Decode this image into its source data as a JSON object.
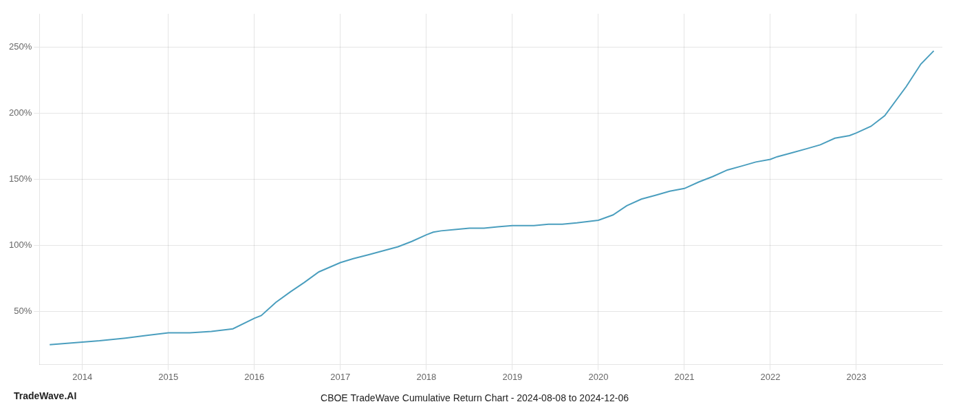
{
  "chart_data": {
    "type": "line",
    "title": "CBOE TradeWave Cumulative Return Chart - 2024-08-08 to 2024-12-06",
    "annotations": [
      "TradeWave.AI"
    ],
    "x": [
      2013.62,
      2014.0,
      2014.2,
      2014.5,
      2014.75,
      2015.0,
      2015.25,
      2015.5,
      2015.75,
      2016.0,
      2016.08,
      2016.25,
      2016.42,
      2016.58,
      2016.75,
      2017.0,
      2017.15,
      2017.33,
      2017.5,
      2017.67,
      2017.83,
      2018.0,
      2018.08,
      2018.17,
      2018.33,
      2018.5,
      2018.67,
      2018.83,
      2019.0,
      2019.08,
      2019.25,
      2019.42,
      2019.58,
      2019.75,
      2020.0,
      2020.17,
      2020.33,
      2020.5,
      2020.67,
      2020.83,
      2021.0,
      2021.17,
      2021.33,
      2021.5,
      2021.67,
      2021.83,
      2022.0,
      2022.08,
      2022.25,
      2022.42,
      2022.58,
      2022.75,
      2022.92,
      2023.0,
      2023.17,
      2023.33,
      2023.58,
      2023.75,
      2023.9
    ],
    "values": [
      25,
      27,
      28,
      30,
      32,
      34,
      34,
      35,
      37,
      45,
      47,
      57,
      65,
      72,
      80,
      87,
      90,
      93,
      96,
      99,
      103,
      108,
      110,
      111,
      112,
      113,
      113,
      114,
      115,
      115,
      115,
      116,
      116,
      117,
      119,
      123,
      130,
      135,
      138,
      141,
      143,
      148,
      152,
      157,
      160,
      163,
      165,
      167,
      170,
      173,
      176,
      181,
      183,
      185,
      190,
      198,
      220,
      237,
      247
    ],
    "color": "#4a9ebe",
    "xlim": [
      2013.5,
      2024.0
    ],
    "xticks": [
      2014,
      2015,
      2016,
      2017,
      2018,
      2019,
      2020,
      2021,
      2022,
      2023
    ],
    "ylim": [
      10,
      275
    ],
    "yticks": [
      {
        "value": 50,
        "label": "50%"
      },
      {
        "value": 100,
        "label": "100%"
      },
      {
        "value": 150,
        "label": "150%"
      },
      {
        "value": 200,
        "label": "200%"
      },
      {
        "value": 250,
        "label": "250%"
      }
    ],
    "grid": true
  }
}
